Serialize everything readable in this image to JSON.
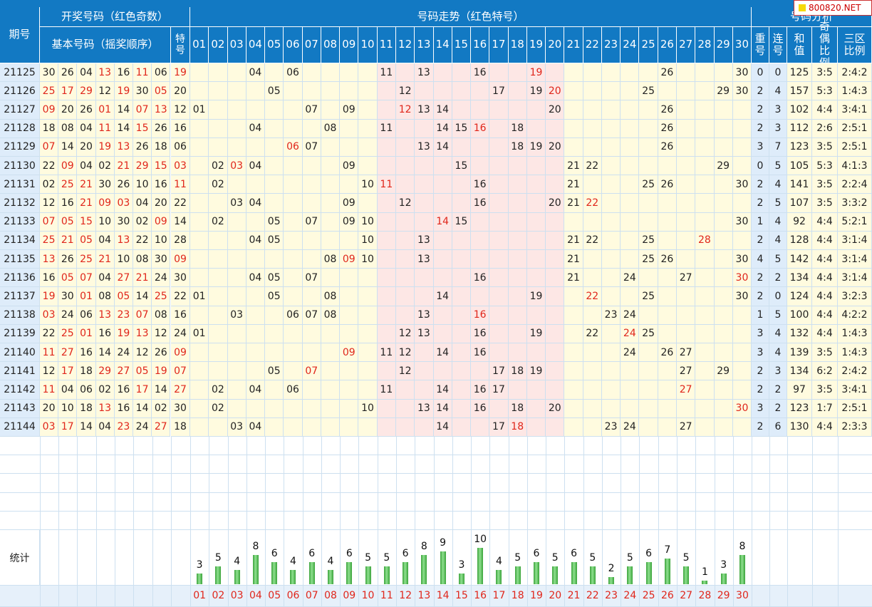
{
  "header": {
    "issue": "期号",
    "draw": "开奖号码（红色奇数）",
    "trend": "号码走势（红色特号）",
    "analysis": "号码分析",
    "basic": "基本号码（摇奖顺序）",
    "special": "特号",
    "repeat": "重号",
    "consec": "连号",
    "sum": "和值",
    "oddeven": "奇偶比例",
    "zones": "三区比例"
  },
  "watermark": "800820.NET",
  "colors": {
    "header_bg": "#1279c3",
    "zone_a": "#fffbdf",
    "zone_b": "#fde7e5",
    "issue_bg": "#deecfa",
    "red": "#e0261b",
    "bar": "#3aa33a"
  },
  "stats_label": "统计",
  "chart_data": {
    "type": "table",
    "rows": [
      {
        "issue": "21125",
        "basic": [
          "30",
          "26",
          "04",
          "13",
          "16",
          "11",
          "06"
        ],
        "special": "19",
        "repeat": "0",
        "consec": "0",
        "sum": "125",
        "oddeven": "3:5",
        "zones": "2:4:2"
      },
      {
        "issue": "21126",
        "basic": [
          "25",
          "17",
          "29",
          "12",
          "19",
          "30",
          "05"
        ],
        "special": "20",
        "repeat": "2",
        "consec": "4",
        "sum": "157",
        "oddeven": "5:3",
        "zones": "1:4:3"
      },
      {
        "issue": "21127",
        "basic": [
          "09",
          "20",
          "26",
          "01",
          "14",
          "07",
          "13"
        ],
        "special": "12",
        "repeat": "2",
        "consec": "3",
        "sum": "102",
        "oddeven": "4:4",
        "zones": "3:4:1"
      },
      {
        "issue": "21128",
        "basic": [
          "18",
          "08",
          "04",
          "11",
          "14",
          "15",
          "26"
        ],
        "special": "16",
        "repeat": "2",
        "consec": "3",
        "sum": "112",
        "oddeven": "2:6",
        "zones": "2:5:1"
      },
      {
        "issue": "21129",
        "basic": [
          "07",
          "14",
          "20",
          "19",
          "13",
          "26",
          "18"
        ],
        "special": "06",
        "repeat": "3",
        "consec": "7",
        "sum": "123",
        "oddeven": "3:5",
        "zones": "2:5:1"
      },
      {
        "issue": "21130",
        "basic": [
          "22",
          "09",
          "04",
          "02",
          "21",
          "29",
          "15"
        ],
        "special": "03",
        "repeat": "0",
        "consec": "5",
        "sum": "105",
        "oddeven": "5:3",
        "zones": "4:1:3"
      },
      {
        "issue": "21131",
        "basic": [
          "02",
          "25",
          "21",
          "30",
          "26",
          "10",
          "16"
        ],
        "special": "11",
        "repeat": "2",
        "consec": "4",
        "sum": "141",
        "oddeven": "3:5",
        "zones": "2:2:4"
      },
      {
        "issue": "21132",
        "basic": [
          "12",
          "16",
          "21",
          "09",
          "03",
          "04",
          "20"
        ],
        "special": "22",
        "repeat": "2",
        "consec": "5",
        "sum": "107",
        "oddeven": "3:5",
        "zones": "3:3:2"
      },
      {
        "issue": "21133",
        "basic": [
          "07",
          "05",
          "15",
          "10",
          "30",
          "02",
          "09"
        ],
        "special": "14",
        "repeat": "1",
        "consec": "4",
        "sum": "92",
        "oddeven": "4:4",
        "zones": "5:2:1"
      },
      {
        "issue": "21134",
        "basic": [
          "25",
          "21",
          "05",
          "04",
          "13",
          "22",
          "10"
        ],
        "special": "28",
        "repeat": "2",
        "consec": "4",
        "sum": "128",
        "oddeven": "4:4",
        "zones": "3:1:4"
      },
      {
        "issue": "21135",
        "basic": [
          "13",
          "26",
          "25",
          "21",
          "10",
          "08",
          "30"
        ],
        "special": "09",
        "repeat": "4",
        "consec": "5",
        "sum": "142",
        "oddeven": "4:4",
        "zones": "3:1:4"
      },
      {
        "issue": "21136",
        "basic": [
          "16",
          "05",
          "07",
          "04",
          "27",
          "21",
          "24"
        ],
        "special": "30",
        "repeat": "2",
        "consec": "2",
        "sum": "134",
        "oddeven": "4:4",
        "zones": "3:1:4"
      },
      {
        "issue": "21137",
        "basic": [
          "19",
          "30",
          "01",
          "08",
          "05",
          "14",
          "25"
        ],
        "special": "22",
        "repeat": "2",
        "consec": "0",
        "sum": "124",
        "oddeven": "4:4",
        "zones": "3:2:3"
      },
      {
        "issue": "21138",
        "basic": [
          "03",
          "24",
          "06",
          "13",
          "23",
          "07",
          "08"
        ],
        "special": "16",
        "repeat": "1",
        "consec": "5",
        "sum": "100",
        "oddeven": "4:4",
        "zones": "4:2:2"
      },
      {
        "issue": "21139",
        "basic": [
          "22",
          "25",
          "01",
          "16",
          "19",
          "13",
          "12"
        ],
        "special": "24",
        "repeat": "3",
        "consec": "4",
        "sum": "132",
        "oddeven": "4:4",
        "zones": "1:4:3"
      },
      {
        "issue": "21140",
        "basic": [
          "11",
          "27",
          "16",
          "14",
          "24",
          "12",
          "26"
        ],
        "special": "09",
        "repeat": "3",
        "consec": "4",
        "sum": "139",
        "oddeven": "3:5",
        "zones": "1:4:3"
      },
      {
        "issue": "21141",
        "basic": [
          "12",
          "17",
          "18",
          "29",
          "27",
          "05",
          "19"
        ],
        "special": "07",
        "repeat": "2",
        "consec": "3",
        "sum": "134",
        "oddeven": "6:2",
        "zones": "2:4:2"
      },
      {
        "issue": "21142",
        "basic": [
          "11",
          "04",
          "06",
          "02",
          "16",
          "17",
          "14"
        ],
        "special": "27",
        "repeat": "2",
        "consec": "2",
        "sum": "97",
        "oddeven": "3:5",
        "zones": "3:4:1"
      },
      {
        "issue": "21143",
        "basic": [
          "20",
          "10",
          "18",
          "13",
          "16",
          "14",
          "02"
        ],
        "special": "30",
        "repeat": "3",
        "consec": "2",
        "sum": "123",
        "oddeven": "1:7",
        "zones": "2:5:1"
      },
      {
        "issue": "21144",
        "basic": [
          "03",
          "17",
          "14",
          "04",
          "23",
          "24",
          "27"
        ],
        "special": "18",
        "repeat": "2",
        "consec": "6",
        "sum": "130",
        "oddeven": "4:4",
        "zones": "2:3:3"
      }
    ],
    "stats": {
      "type": "bar",
      "categories": [
        "01",
        "02",
        "03",
        "04",
        "05",
        "06",
        "07",
        "08",
        "09",
        "10",
        "11",
        "12",
        "13",
        "14",
        "15",
        "16",
        "17",
        "18",
        "19",
        "20",
        "21",
        "22",
        "23",
        "24",
        "25",
        "26",
        "27",
        "28",
        "29",
        "30"
      ],
      "values": [
        3,
        5,
        4,
        8,
        6,
        4,
        6,
        4,
        6,
        5,
        5,
        6,
        8,
        9,
        3,
        10,
        4,
        5,
        6,
        5,
        6,
        5,
        2,
        5,
        6,
        7,
        5,
        1,
        3,
        8
      ]
    }
  }
}
